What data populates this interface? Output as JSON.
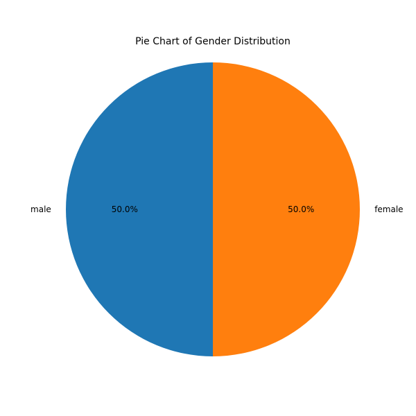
{
  "chart_data": {
    "type": "pie",
    "title": "Pie Chart of Gender Distribution",
    "slices": [
      {
        "label": "male",
        "value": 50.0,
        "percent_label": "50.0%",
        "color": "#1f77b4"
      },
      {
        "label": "female",
        "value": 50.0,
        "percent_label": "50.0%",
        "color": "#ff7f0e"
      }
    ],
    "start_angle_deg": 90,
    "direction": "counterclockwise",
    "legend": "none"
  }
}
